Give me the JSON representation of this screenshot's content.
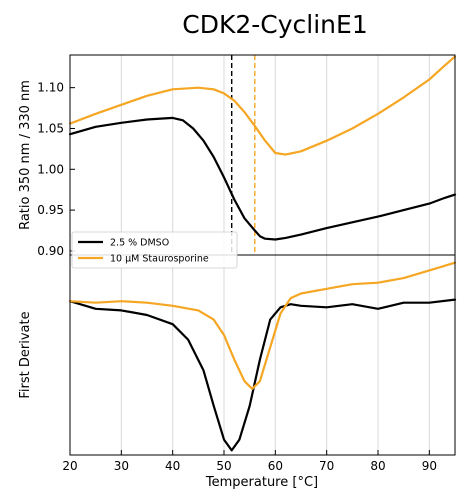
{
  "chart_data": [
    {
      "type": "line",
      "title": "CDK2-CyclinE1",
      "ylabel": "Ratio 350 nm / 330 nm",
      "xlim": [
        20,
        95
      ],
      "ylim": [
        0.895,
        1.14
      ],
      "yticks": [
        0.9,
        0.95,
        1.0,
        1.05,
        1.1
      ],
      "ytick_labels": [
        "0.90",
        "0.95",
        "1.00",
        "1.05",
        "1.10"
      ],
      "grid": "vertical",
      "legend": "bottom-left",
      "vlines": [
        {
          "x": 51.5,
          "color": "#000000",
          "style": "dashed"
        },
        {
          "x": 56.0,
          "color": "#f5a623",
          "style": "dashed"
        }
      ],
      "series": [
        {
          "name": "2.5 % DMSO",
          "color": "#000000",
          "x": [
            20,
            25,
            30,
            35,
            40,
            42,
            44,
            46,
            48,
            50,
            52,
            54,
            56,
            57,
            58,
            60,
            62,
            65,
            70,
            75,
            80,
            85,
            90,
            93,
            95
          ],
          "y": [
            1.043,
            1.052,
            1.057,
            1.061,
            1.063,
            1.06,
            1.05,
            1.035,
            1.015,
            0.99,
            0.963,
            0.94,
            0.925,
            0.918,
            0.915,
            0.914,
            0.916,
            0.92,
            0.928,
            0.935,
            0.942,
            0.95,
            0.958,
            0.965,
            0.969
          ]
        },
        {
          "name": "10 µM Staurosporine",
          "color": "#f5a623",
          "x": [
            20,
            25,
            30,
            35,
            40,
            45,
            48,
            50,
            52,
            54,
            56,
            58,
            60,
            62,
            65,
            70,
            75,
            80,
            85,
            90,
            93,
            95
          ],
          "y": [
            1.056,
            1.068,
            1.079,
            1.09,
            1.098,
            1.1,
            1.098,
            1.093,
            1.084,
            1.07,
            1.053,
            1.035,
            1.02,
            1.018,
            1.022,
            1.035,
            1.05,
            1.068,
            1.088,
            1.11,
            1.127,
            1.138
          ]
        }
      ]
    },
    {
      "type": "line",
      "xlabel": "Temperature [°C]",
      "ylabel": "First Derivate",
      "xlim": [
        20,
        95
      ],
      "ylim": [
        -1.0,
        0.3
      ],
      "xticks": [
        20,
        30,
        40,
        50,
        60,
        70,
        80,
        90
      ],
      "xtick_labels": [
        "20",
        "30",
        "40",
        "50",
        "60",
        "70",
        "80",
        "90"
      ],
      "grid": "vertical",
      "series": [
        {
          "name": "2.5 % DMSO",
          "color": "#000000",
          "x": [
            20,
            25,
            30,
            35,
            40,
            43,
            46,
            48,
            50,
            51.5,
            53,
            55,
            57,
            59,
            61,
            63,
            65,
            70,
            75,
            80,
            85,
            90,
            95
          ],
          "y": [
            0.0,
            -0.05,
            -0.06,
            -0.09,
            -0.15,
            -0.25,
            -0.45,
            -0.68,
            -0.9,
            -0.97,
            -0.9,
            -0.68,
            -0.38,
            -0.12,
            -0.04,
            -0.02,
            -0.03,
            -0.04,
            -0.02,
            -0.05,
            -0.01,
            -0.01,
            0.01
          ]
        },
        {
          "name": "10 µM Staurosporine",
          "color": "#f5a623",
          "x": [
            20,
            25,
            30,
            35,
            40,
            45,
            48,
            50,
            52,
            54,
            55.5,
            57,
            59,
            61,
            63,
            65,
            70,
            75,
            80,
            85,
            90,
            95
          ],
          "y": [
            0.0,
            -0.01,
            0.0,
            -0.01,
            -0.03,
            -0.06,
            -0.12,
            -0.22,
            -0.38,
            -0.52,
            -0.57,
            -0.52,
            -0.3,
            -0.08,
            0.02,
            0.05,
            0.08,
            0.11,
            0.12,
            0.15,
            0.2,
            0.25
          ]
        }
      ]
    }
  ]
}
